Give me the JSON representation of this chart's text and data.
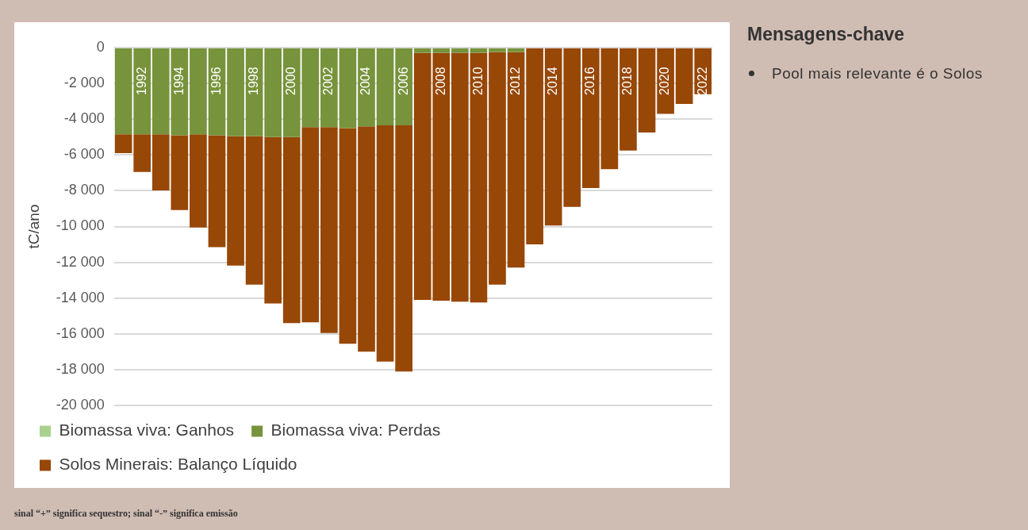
{
  "chart_data": {
    "type": "bar",
    "stacked": true,
    "ylabel": "tC/ano",
    "categories": [
      null,
      "1992",
      null,
      "1994",
      null,
      "1996",
      null,
      "1998",
      null,
      "2000",
      null,
      "2002",
      null,
      "2004",
      null,
      "2006",
      null,
      "2008",
      null,
      "2010",
      null,
      "2012",
      null,
      "2014",
      null,
      "2016",
      null,
      "2018",
      null,
      "2020",
      null,
      "2022"
    ],
    "series": [
      {
        "name": "Biomassa viva: Ganhos",
        "color": "#a9d18e",
        "values": [
          0,
          0,
          0,
          0,
          0,
          0,
          0,
          0,
          0,
          0,
          0,
          0,
          0,
          0,
          0,
          0,
          0,
          0,
          0,
          0,
          0,
          0,
          0,
          0,
          0,
          0,
          0,
          0,
          0,
          0,
          0,
          0
        ]
      },
      {
        "name": "Biomassa viva: Perdas",
        "color": "#77933c",
        "values": [
          -4850,
          -4850,
          -4850,
          -4900,
          -4850,
          -4900,
          -4950,
          -4950,
          -5000,
          -5000,
          -4450,
          -4450,
          -4500,
          -4400,
          -4350,
          -4350,
          -300,
          -300,
          -300,
          -300,
          -250,
          -250,
          0,
          0,
          0,
          0,
          0,
          0,
          0,
          0,
          0,
          0
        ]
      },
      {
        "name": "Solos Minerais: Balanço Líquido",
        "color": "#974706",
        "values": [
          -1050,
          -2100,
          -3130,
          -4180,
          -5200,
          -6250,
          -7230,
          -8300,
          -9300,
          -10400,
          -10900,
          -11500,
          -12050,
          -12600,
          -13200,
          -13750,
          -13800,
          -13850,
          -13900,
          -13950,
          -13000,
          -12050,
          -11000,
          -9950,
          -8900,
          -7850,
          -6800,
          -5750,
          -4750,
          -3700,
          -3150,
          -2600
        ]
      }
    ],
    "ylim": [
      -20000,
      0
    ],
    "yticks": [
      {
        "value": -20000,
        "label": "-20 000"
      },
      {
        "value": -18000,
        "label": "-18 000"
      },
      {
        "value": -16000,
        "label": "-16 000"
      },
      {
        "value": -14000,
        "label": "-14 000"
      },
      {
        "value": -12000,
        "label": "-12 000"
      },
      {
        "value": -10000,
        "label": "-10 000"
      },
      {
        "value": -8000,
        "label": "-8 000"
      },
      {
        "value": -6000,
        "label": "-6 000"
      },
      {
        "value": -4000,
        "label": "-4 000"
      },
      {
        "value": -2000,
        "label": "-2 000"
      },
      {
        "value": 0,
        "label": "0"
      }
    ],
    "grid": "y",
    "legend": "bottom",
    "annotations": [
      "Mensagens-chave",
      "Pool mais relevante é o Solos",
      "sinal “+” significa sequestro; sinal “-” significa emissão"
    ]
  }
}
